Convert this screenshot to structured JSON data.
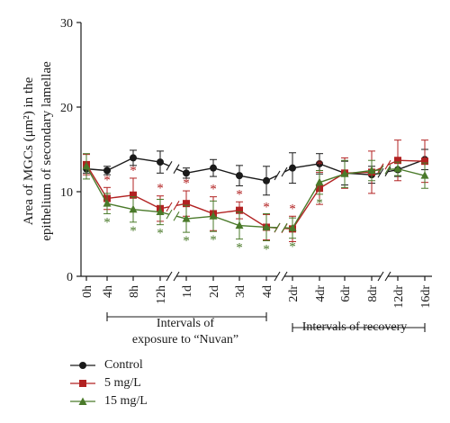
{
  "chart_data": {
    "type": "line",
    "ylabel_line1": "Area of MGCs (μm²) in the",
    "ylabel_line2": "epithelium of secondary lamellae",
    "ylim": [
      0,
      30
    ],
    "yticks": [
      0,
      10,
      20,
      30
    ],
    "grid": false,
    "legend_position": "bottom-left",
    "categories": [
      "0h",
      "4h",
      "8h",
      "12h",
      "1d",
      "2d",
      "3d",
      "4d",
      "2dr",
      "4dr",
      "6dr",
      "8dr",
      "12dr",
      "16dr"
    ],
    "exposure_group_label_line1": "Intervals of",
    "exposure_group_label_line2": "exposure to “Nuvan”",
    "recovery_group_label": "Intervals of recovery",
    "significance_marker": "*",
    "series": [
      {
        "name": "Control",
        "color": "#1a1a1a",
        "marker": "circle",
        "values": [
          12.7,
          12.5,
          14.0,
          13.5,
          12.2,
          12.8,
          11.9,
          11.3,
          12.8,
          13.3,
          12.2,
          12.0,
          12.6,
          13.8
        ],
        "errors": [
          0.5,
          0.5,
          0.9,
          1.3,
          0.6,
          1.0,
          1.2,
          1.7,
          1.8,
          1.2,
          1.4,
          1.0,
          0.8,
          1.2
        ],
        "significant": [
          false,
          false,
          false,
          false,
          false,
          false,
          false,
          false,
          false,
          false,
          false,
          false,
          false,
          false
        ]
      },
      {
        "name": "5 mg/L",
        "color": "#b22222",
        "marker": "square",
        "values": [
          13.2,
          9.2,
          9.6,
          8.0,
          8.6,
          7.4,
          7.8,
          5.8,
          5.6,
          10.4,
          12.2,
          12.3,
          13.7,
          13.6
        ],
        "errors": [
          1.2,
          1.3,
          2.0,
          1.5,
          1.5,
          2.0,
          1.0,
          1.5,
          1.5,
          1.9,
          1.8,
          2.5,
          2.4,
          2.5
        ],
        "significant": [
          false,
          true,
          true,
          true,
          true,
          true,
          true,
          true,
          true,
          true,
          false,
          false,
          false,
          false
        ]
      },
      {
        "name": "15 mg/L",
        "color": "#4a7a2a",
        "marker": "triangle",
        "values": [
          13.0,
          8.6,
          7.9,
          7.6,
          6.8,
          7.1,
          6.0,
          5.8,
          5.7,
          11.1,
          12.1,
          12.5,
          12.7,
          11.9
        ],
        "errors": [
          1.5,
          1.2,
          1.5,
          1.5,
          1.6,
          1.8,
          1.6,
          1.6,
          1.2,
          1.4,
          1.6,
          1.2,
          0.8,
          1.5
        ],
        "significant": [
          false,
          true,
          true,
          true,
          true,
          true,
          true,
          true,
          true,
          true,
          false,
          false,
          false,
          false
        ]
      }
    ]
  }
}
